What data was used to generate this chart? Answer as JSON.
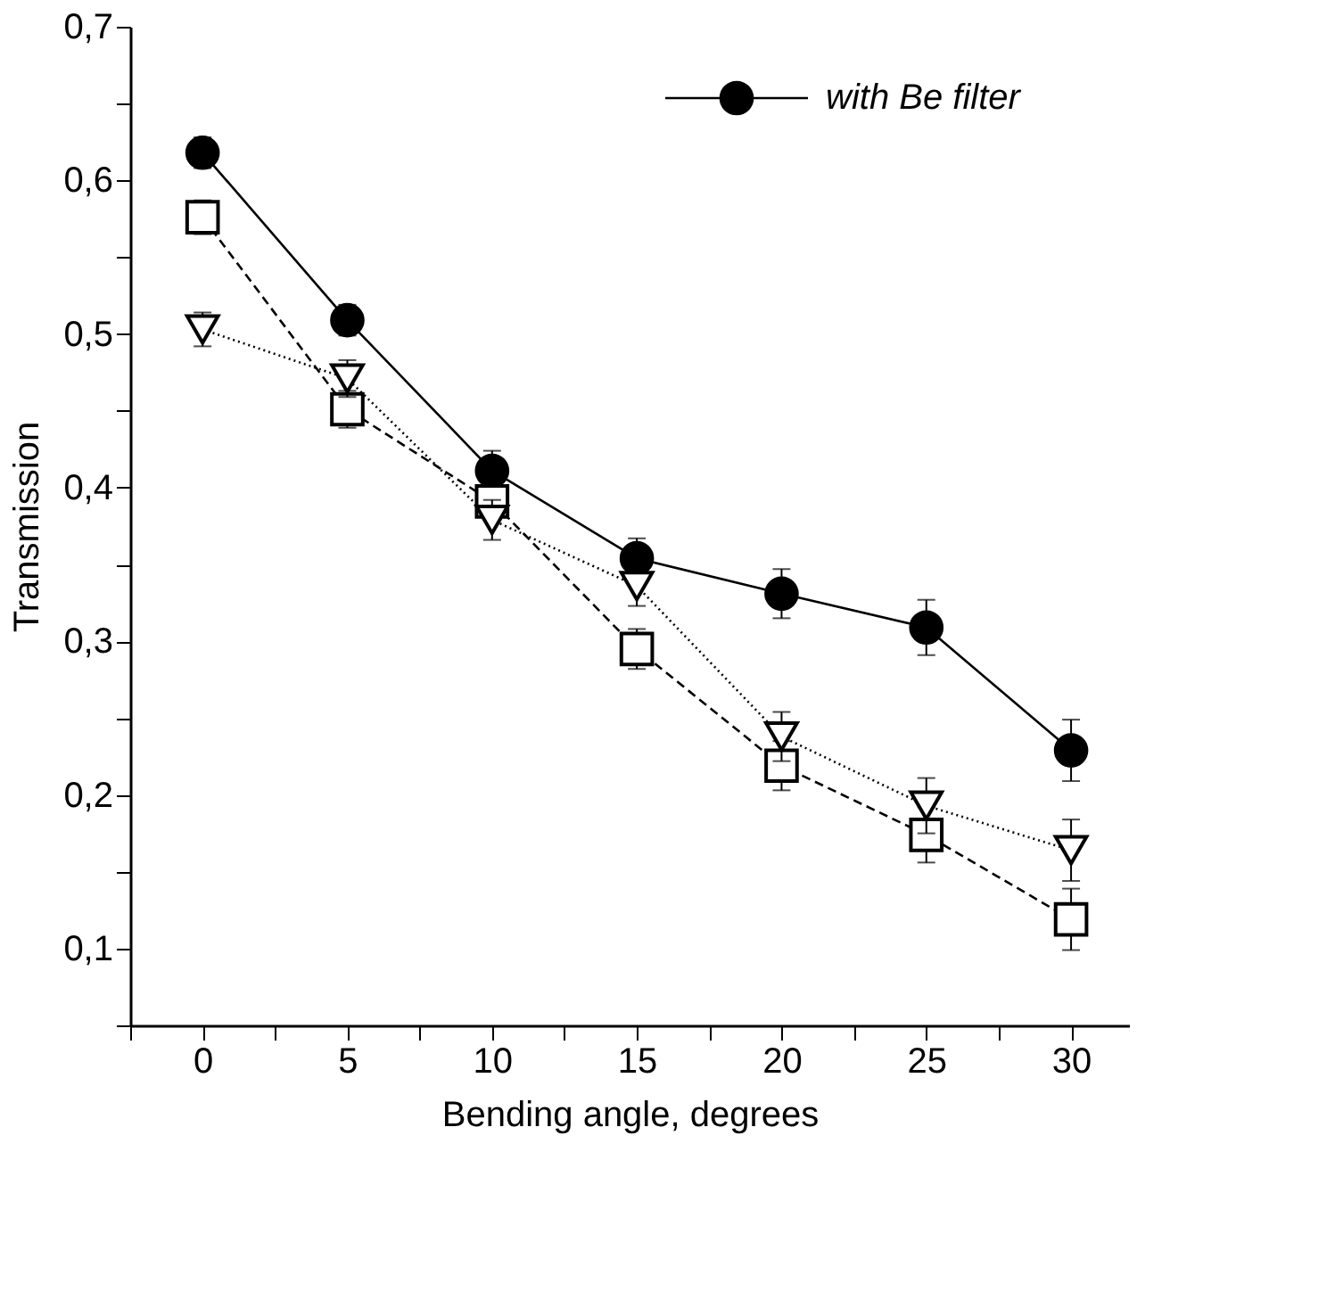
{
  "chart_data": {
    "type": "line",
    "xlabel": "Bending angle, degrees",
    "ylabel": "Transmission",
    "x": [
      0,
      5,
      10,
      15,
      20,
      25,
      30
    ],
    "series": [
      {
        "name": "with Be filter",
        "color": "#000000",
        "marker": "circle",
        "line_style": "solid",
        "values": [
          0.618,
          0.509,
          0.411,
          0.354,
          0.331,
          0.309,
          0.229
        ],
        "errors": [
          0.01,
          0.01,
          0.013,
          0.013,
          0.016,
          0.018,
          0.02
        ]
      },
      {
        "color": "#000000",
        "marker": "square",
        "line_style": "dashed",
        "values": [
          0.576,
          0.451,
          0.391,
          0.295,
          0.219,
          0.174,
          0.119
        ],
        "errors": [
          0.011,
          0.012,
          0.012,
          0.013,
          0.016,
          0.018,
          0.02
        ]
      },
      {
        "color": "#000000",
        "marker": "triangle",
        "line_style": "dotted",
        "values": [
          0.503,
          0.471,
          0.379,
          0.336,
          0.238,
          0.193,
          0.164
        ],
        "errors": [
          0.011,
          0.012,
          0.013,
          0.013,
          0.016,
          0.018,
          0.02
        ]
      }
    ],
    "xlim": [
      -2.5,
      32
    ],
    "xticks": [
      {
        "value": -2.5,
        "label": null
      },
      0,
      {
        "value": 2.5,
        "label": null
      },
      5,
      {
        "value": 7.5,
        "label": null
      },
      10,
      {
        "value": 12.5,
        "label": null
      },
      15,
      {
        "value": 17.5,
        "label": null
      },
      20,
      {
        "value": 22.5,
        "label": null
      },
      25,
      {
        "value": 27.5,
        "label": null
      },
      30
    ],
    "ylim": [
      0.05,
      0.7
    ],
    "yticks": [
      {
        "value": 0.05,
        "label": null
      },
      {
        "value": 0.1,
        "label": "0,1"
      },
      {
        "value": 0.15,
        "label": null
      },
      {
        "value": 0.2,
        "label": "0,2"
      },
      {
        "value": 0.25,
        "label": null
      },
      {
        "value": 0.3,
        "label": "0,3"
      },
      {
        "value": 0.35,
        "label": null
      },
      {
        "value": 0.4,
        "label": "0,4"
      },
      {
        "value": 0.45,
        "label": null
      },
      {
        "value": 0.5,
        "label": "0,5"
      },
      {
        "value": 0.55,
        "label": null
      },
      {
        "value": 0.6,
        "label": "0,6"
      },
      {
        "value": 0.65,
        "label": null
      },
      {
        "value": 0.7,
        "label": "0,7"
      }
    ],
    "grid": false,
    "legend": "top right"
  }
}
